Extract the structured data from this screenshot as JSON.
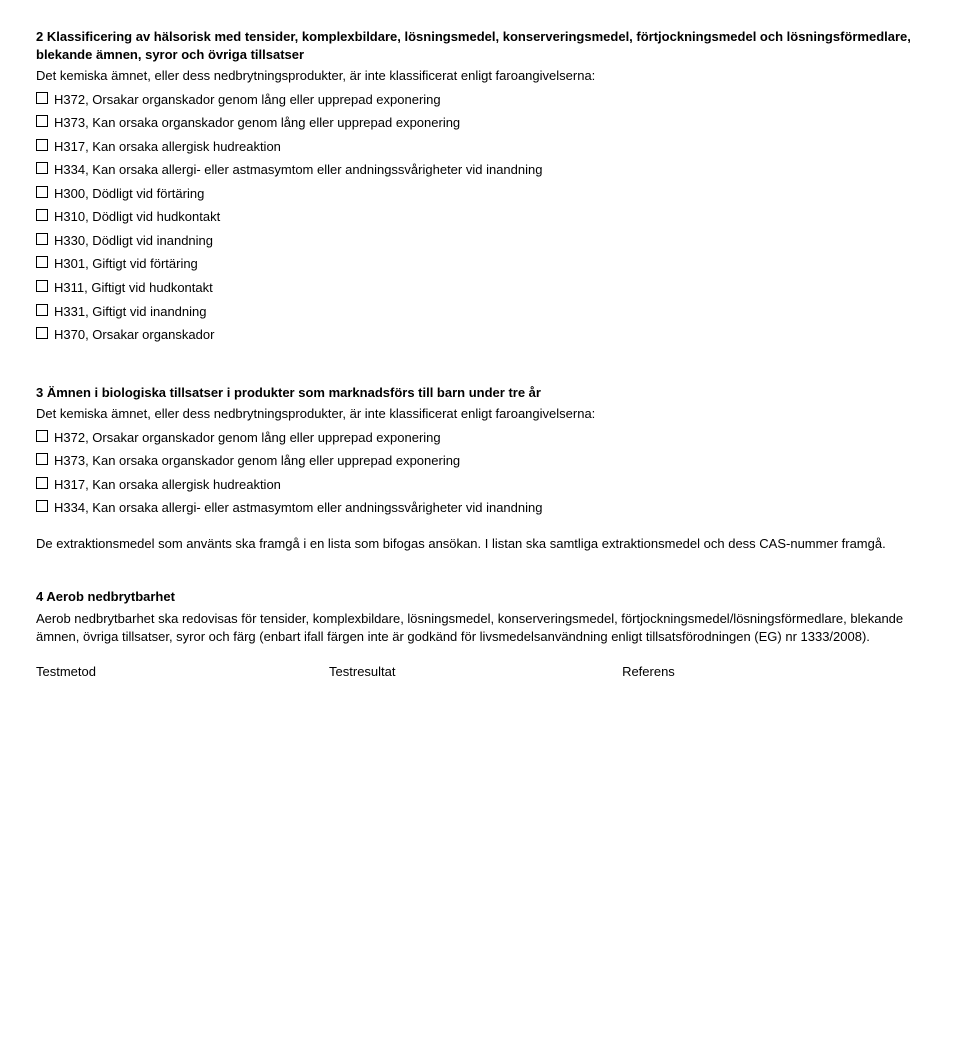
{
  "section2": {
    "title": "2 Klassificering av hälsorisk med tensider, komplexbildare, lösningsmedel, konserveringsmedel, förtjockningsmedel och lösningsförmedlare, blekande ämnen, syror och övriga tillsatser",
    "intro": "Det kemiska ämnet, eller dess nedbrytningsprodukter, är inte klassificerat enligt faroangivelserna:",
    "items": [
      "H372, Orsakar organskador genom lång eller upprepad exponering",
      "H373, Kan orsaka organskador genom lång eller upprepad exponering",
      "H317, Kan orsaka allergisk hudreaktion",
      "H334, Kan orsaka allergi- eller astmasymtom eller andningssvårigheter vid inandning",
      "H300, Dödligt vid förtäring",
      "H310, Dödligt vid hudkontakt",
      "H330, Dödligt vid inandning",
      "H301, Giftigt vid förtäring",
      "H311, Giftigt vid hudkontakt",
      "H331, Giftigt vid inandning",
      "H370, Orsakar organskador"
    ]
  },
  "section3": {
    "title": "3 Ämnen i biologiska tillsatser i produkter som marknadsförs till barn under tre år",
    "intro": "Det kemiska ämnet, eller dess nedbrytningsprodukter, är inte klassificerat enligt faroangivelserna:",
    "items": [
      "H372, Orsakar organskador genom lång eller upprepad exponering",
      "H373, Kan orsaka organskador genom lång eller upprepad exponering",
      "H317, Kan orsaka allergisk hudreaktion",
      "H334, Kan orsaka allergi- eller astmasymtom eller andningssvårigheter vid inandning"
    ],
    "note": "De extraktionsmedel som använts ska framgå i en lista som bifogas ansökan. I listan ska samtliga extraktionsmedel och dess CAS-nummer framgå."
  },
  "section4": {
    "title": "4 Aerob nedbrytbarhet",
    "body": "Aerob nedbrytbarhet ska redovisas för tensider, komplexbildare, lösningsmedel, konserveringsmedel, förtjockningsmedel/lösningsförmedlare, blekande ämnen, övriga tillsatser, syror och färg (enbart ifall färgen inte är godkänd för livsmedelsanvändning enligt tillsatsförodningen (EG) nr 1333/2008).",
    "columns": [
      "Testmetod",
      "Testresultat",
      "Referens"
    ]
  }
}
